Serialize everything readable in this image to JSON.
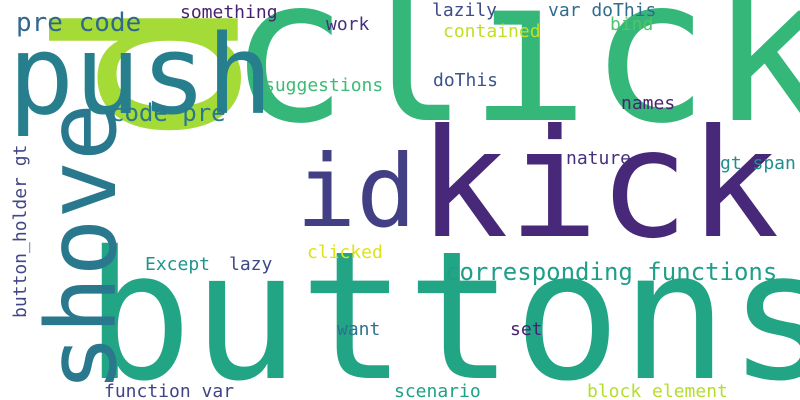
{
  "words": [
    {
      "text": "p",
      "color": "#a5db36"
    },
    {
      "text": "click",
      "color": "#35b779"
    },
    {
      "text": "buttons",
      "color": "#21a585"
    },
    {
      "text": "kick",
      "color": "#482878"
    },
    {
      "text": "push",
      "color": "#277f8e"
    },
    {
      "text": "shove",
      "color": "#2a788e"
    },
    {
      "text": "id",
      "color": "#423f85"
    },
    {
      "text": "pre code",
      "color": "#31688e"
    },
    {
      "text": "code pre",
      "color": "#2a788e"
    },
    {
      "text": "corresponding functions",
      "color": "#1f9e89"
    },
    {
      "text": "something",
      "color": "#481f70"
    },
    {
      "text": "work",
      "color": "#46327e"
    },
    {
      "text": "lazily",
      "color": "#3e4a89"
    },
    {
      "text": "var doThis",
      "color": "#2f6c8e"
    },
    {
      "text": "contained",
      "color": "#c2df23"
    },
    {
      "text": "bind",
      "color": "#50c46a"
    },
    {
      "text": "suggestions",
      "color": "#3bbb75"
    },
    {
      "text": "doThis",
      "color": "#3b528b"
    },
    {
      "text": "names",
      "color": "#482475"
    },
    {
      "text": "nature",
      "color": "#472f7d"
    },
    {
      "text": "gt span",
      "color": "#228c8d"
    },
    {
      "text": "button_holder gt",
      "color": "#404688"
    },
    {
      "text": "clicked",
      "color": "#dde318"
    },
    {
      "text": "Except",
      "color": "#1f948c"
    },
    {
      "text": "lazy",
      "color": "#3e4989"
    },
    {
      "text": "want",
      "color": "#2c728e"
    },
    {
      "text": "set",
      "color": "#482173"
    },
    {
      "text": "function var",
      "color": "#414487"
    },
    {
      "text": "scenario",
      "color": "#1fa187"
    },
    {
      "text": "block element",
      "color": "#b5de2b"
    }
  ]
}
